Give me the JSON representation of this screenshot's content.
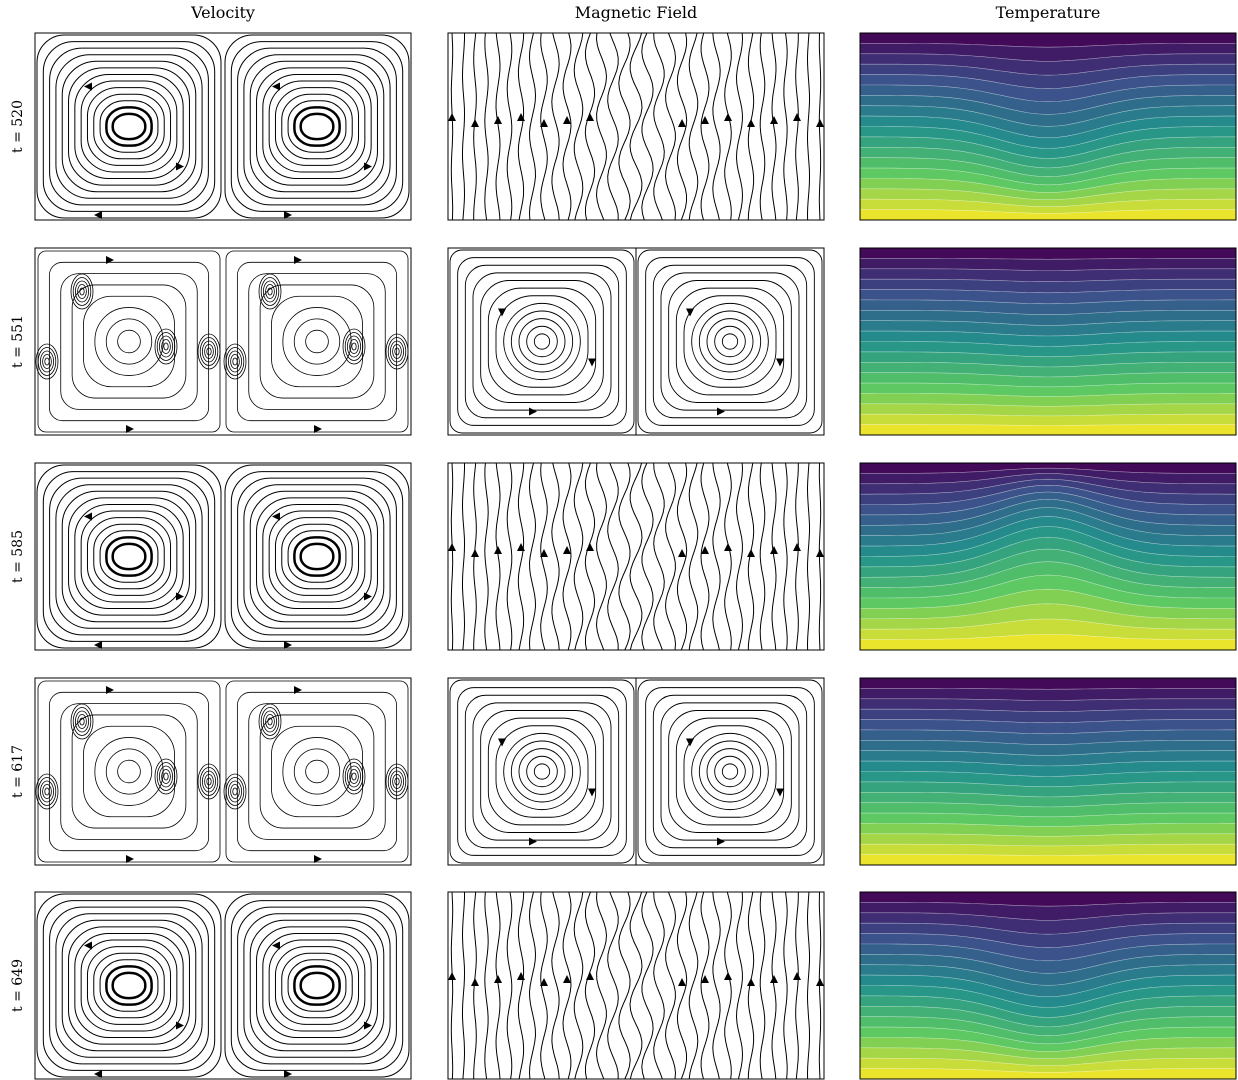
{
  "columns": [
    "Velocity",
    "Magnetic Field",
    "Temperature"
  ],
  "rows": [
    "t = 520",
    "t = 551",
    "t = 585",
    "t = 617",
    "t = 649"
  ]
}
